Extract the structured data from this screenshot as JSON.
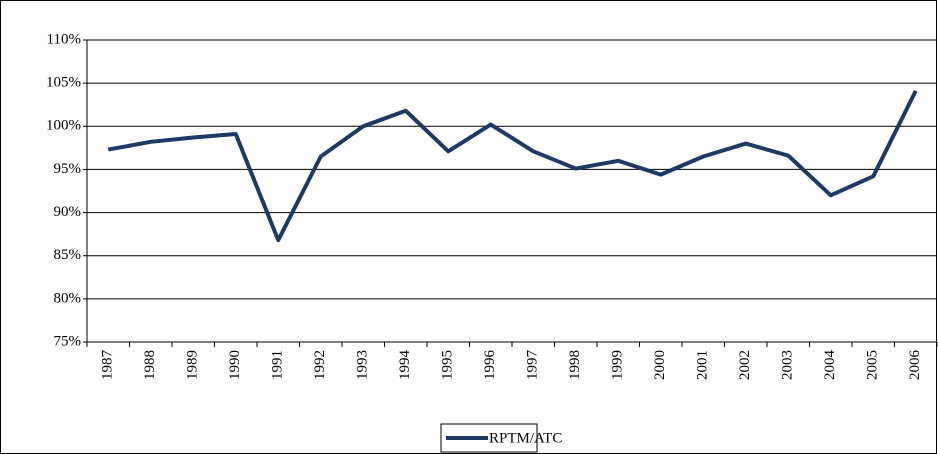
{
  "chart_data": {
    "type": "line",
    "categories": [
      "1987",
      "1988",
      "1989",
      "1990",
      "1991",
      "1992",
      "1993",
      "1994",
      "1995",
      "1996",
      "1997",
      "1998",
      "1999",
      "2000",
      "2001",
      "2002",
      "2003",
      "2004",
      "2005",
      "2006"
    ],
    "series": [
      {
        "name": "RPTM/ATC",
        "color": "#1f3864",
        "values": [
          97.3,
          98.2,
          98.7,
          99.1,
          86.8,
          96.5,
          100.0,
          101.8,
          97.1,
          100.2,
          97.1,
          95.1,
          96.0,
          94.4,
          96.5,
          98.0,
          96.6,
          92.0,
          94.2,
          104.1
        ]
      }
    ],
    "ylim": [
      75,
      110
    ],
    "yticks": [
      {
        "value": 75,
        "label": "75%"
      },
      {
        "value": 80,
        "label": "80%"
      },
      {
        "value": 85,
        "label": "85%"
      },
      {
        "value": 90,
        "label": "90%"
      },
      {
        "value": 95,
        "label": "95%"
      },
      {
        "value": 100,
        "label": "100%"
      },
      {
        "value": 105,
        "label": "105%"
      },
      {
        "value": 110,
        "label": "110%"
      }
    ],
    "grid": true,
    "legend": "bottom"
  }
}
